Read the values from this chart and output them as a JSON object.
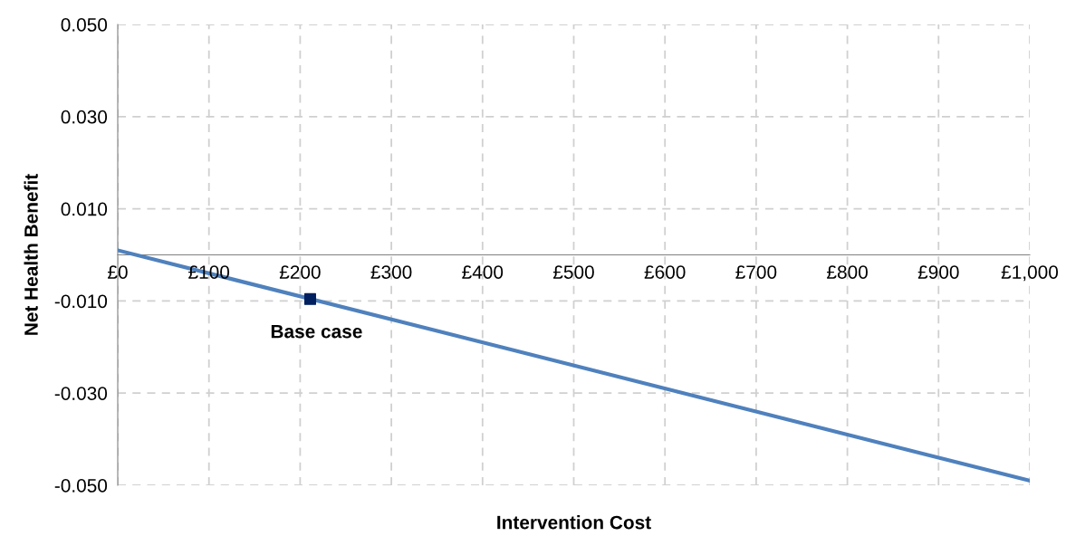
{
  "chart_data": {
    "type": "line",
    "xlabel": "Intervention Cost",
    "ylabel": "Net Health Benefit",
    "xlim": [
      0,
      1000
    ],
    "ylim": [
      -0.05,
      0.05
    ],
    "xticks": [
      {
        "value": 0,
        "label": "£0"
      },
      {
        "value": 100,
        "label": "£100"
      },
      {
        "value": 200,
        "label": "£200"
      },
      {
        "value": 300,
        "label": "£300"
      },
      {
        "value": 400,
        "label": "£400"
      },
      {
        "value": 500,
        "label": "£500"
      },
      {
        "value": 600,
        "label": "£600"
      },
      {
        "value": 700,
        "label": "£700"
      },
      {
        "value": 800,
        "label": "£800"
      },
      {
        "value": 900,
        "label": "£900"
      },
      {
        "value": 1000,
        "label": "£1,000"
      }
    ],
    "yticks": [
      {
        "value": -0.05,
        "label": "-0.050"
      },
      {
        "value": -0.03,
        "label": "-0.030"
      },
      {
        "value": -0.01,
        "label": "-0.010"
      },
      {
        "value": 0.01,
        "label": "0.010"
      },
      {
        "value": 0.03,
        "label": "0.030"
      },
      {
        "value": 0.05,
        "label": "0.050"
      }
    ],
    "grid": true,
    "series": [
      {
        "type": "line",
        "color": "#4f81bd",
        "x": [
          0,
          1000
        ],
        "values": [
          0.001,
          -0.049
        ],
        "marker": "none"
      },
      {
        "type": "scatter",
        "color": "#002060",
        "x": [
          211
        ],
        "values": [
          -0.0096
        ],
        "marker": "square"
      }
    ],
    "annotations": [
      {
        "text": "Base case",
        "x": 211,
        "y": -0.0096
      }
    ]
  }
}
